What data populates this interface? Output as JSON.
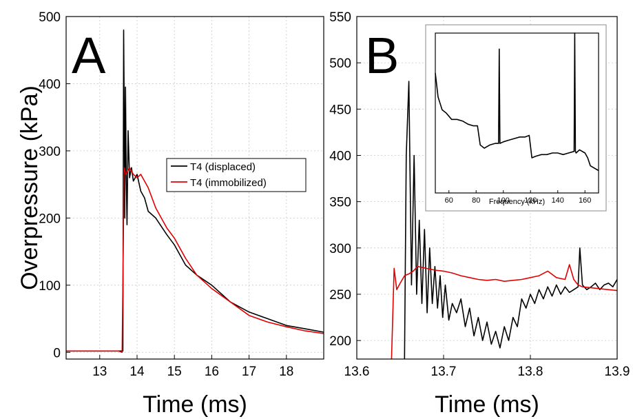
{
  "chart_data": [
    {
      "type": "line",
      "panel_label": "A",
      "xlabel": "Time (ms)",
      "ylabel": "Overpressure (kPa)",
      "xlim": [
        12.1,
        19.0
      ],
      "ylim": [
        -10,
        500
      ],
      "xticks": [
        13,
        14,
        15,
        16,
        17,
        18
      ],
      "yticks": [
        0,
        100,
        200,
        300,
        400,
        500
      ],
      "grid": true,
      "legend_position": "middle-right",
      "series": [
        {
          "name": "T4 (displaced)",
          "color": "#000000",
          "x": [
            12.1,
            13.0,
            13.5,
            13.62,
            13.64,
            13.66,
            13.67,
            13.69,
            13.71,
            13.73,
            13.76,
            13.8,
            13.85,
            13.9,
            14.0,
            14.1,
            14.2,
            14.3,
            14.5,
            14.8,
            15.0,
            15.3,
            15.6,
            16.0,
            16.5,
            17.0,
            17.5,
            18.0,
            18.5,
            19.0
          ],
          "y": [
            2,
            2,
            2,
            2,
            480,
            330,
            200,
            395,
            260,
            190,
            330,
            260,
            275,
            255,
            265,
            240,
            230,
            210,
            200,
            175,
            160,
            130,
            115,
            100,
            75,
            60,
            50,
            40,
            35,
            30
          ]
        },
        {
          "name": "T4 (immobilized)",
          "color": "#e00000",
          "x": [
            12.1,
            13.0,
            13.5,
            13.6,
            13.63,
            13.65,
            13.7,
            13.8,
            13.9,
            14.0,
            14.1,
            14.3,
            14.5,
            14.8,
            15.0,
            15.3,
            15.6,
            16.0,
            16.5,
            17.0,
            17.5,
            18.0,
            18.5,
            19.0
          ],
          "y": [
            2,
            2,
            2,
            0,
            150,
            275,
            265,
            275,
            265,
            260,
            265,
            245,
            215,
            185,
            170,
            140,
            115,
            95,
            75,
            55,
            45,
            38,
            32,
            28
          ]
        }
      ]
    },
    {
      "type": "line",
      "panel_label": "B",
      "xlabel": "Time (ms)",
      "ylabel": "",
      "xlim": [
        13.6,
        13.9
      ],
      "ylim": [
        180,
        550
      ],
      "xticks": [
        13.6,
        13.7,
        13.8,
        13.9
      ],
      "yticks": [
        200,
        250,
        300,
        350,
        400,
        450,
        500,
        550
      ],
      "grid": true,
      "series": [
        {
          "name": "",
          "color": "#000000",
          "x": [
            13.655,
            13.657,
            13.66,
            13.663,
            13.666,
            13.669,
            13.672,
            13.675,
            13.678,
            13.681,
            13.684,
            13.687,
            13.69,
            13.693,
            13.696,
            13.699,
            13.702,
            13.706,
            13.71,
            13.715,
            13.72,
            13.725,
            13.73,
            13.735,
            13.74,
            13.745,
            13.75,
            13.755,
            13.76,
            13.765,
            13.77,
            13.775,
            13.78,
            13.785,
            13.79,
            13.795,
            13.8,
            13.805,
            13.81,
            13.815,
            13.82,
            13.825,
            13.83,
            13.835,
            13.84,
            13.845,
            13.85,
            13.855,
            13.857,
            13.86,
            13.865,
            13.87,
            13.875,
            13.88,
            13.885,
            13.89,
            13.895,
            13.9
          ],
          "y": [
            180,
            400,
            480,
            260,
            400,
            250,
            330,
            240,
            320,
            230,
            300,
            240,
            280,
            235,
            270,
            225,
            260,
            222,
            240,
            230,
            245,
            215,
            235,
            205,
            225,
            200,
            220,
            196,
            210,
            192,
            215,
            200,
            225,
            215,
            245,
            235,
            250,
            240,
            255,
            245,
            258,
            248,
            260,
            250,
            258,
            252,
            255,
            258,
            300,
            260,
            255,
            258,
            262,
            255,
            260,
            262,
            258,
            266
          ]
        },
        {
          "name": "",
          "color": "#e00000",
          "x": [
            13.64,
            13.643,
            13.646,
            13.65,
            13.655,
            13.66,
            13.665,
            13.67,
            13.68,
            13.69,
            13.7,
            13.71,
            13.72,
            13.73,
            13.74,
            13.75,
            13.76,
            13.77,
            13.78,
            13.79,
            13.8,
            13.81,
            13.82,
            13.83,
            13.84,
            13.845,
            13.85,
            13.855,
            13.86,
            13.87,
            13.88,
            13.89,
            13.9
          ],
          "y": [
            180,
            278,
            255,
            262,
            270,
            272,
            275,
            280,
            278,
            276,
            275,
            273,
            270,
            268,
            266,
            265,
            266,
            264,
            265,
            266,
            268,
            270,
            275,
            268,
            266,
            282,
            266,
            260,
            258,
            257,
            256,
            255,
            254
          ]
        }
      ]
    },
    {
      "type": "line",
      "panel_label": "",
      "xlabel": "Frequency (kHz)",
      "ylabel": "",
      "xlim": [
        50,
        170
      ],
      "ylim": [
        0,
        1
      ],
      "xticks": [
        60,
        80,
        100,
        120,
        140,
        160
      ],
      "grid": false,
      "series": [
        {
          "name": "",
          "color": "#000000",
          "x": [
            50,
            52,
            55,
            58,
            62,
            66,
            70,
            74,
            78,
            81,
            83,
            86,
            90,
            94,
            96.5,
            97,
            97.5,
            100,
            104,
            108,
            112,
            116,
            119,
            121,
            124,
            128,
            132,
            136,
            140,
            144,
            148,
            152,
            152.5,
            153,
            153.5,
            156,
            160,
            162,
            164,
            166,
            170
          ],
          "y": [
            0.75,
            0.6,
            0.52,
            0.5,
            0.46,
            0.46,
            0.45,
            0.43,
            0.42,
            0.42,
            0.3,
            0.28,
            0.3,
            0.31,
            0.31,
            0.9,
            0.31,
            0.32,
            0.33,
            0.34,
            0.35,
            0.35,
            0.36,
            0.22,
            0.23,
            0.24,
            0.24,
            0.25,
            0.25,
            0.24,
            0.25,
            0.26,
            1.0,
            0.26,
            0.25,
            0.27,
            0.25,
            0.22,
            0.17,
            0.16,
            0.14
          ]
        }
      ]
    }
  ]
}
